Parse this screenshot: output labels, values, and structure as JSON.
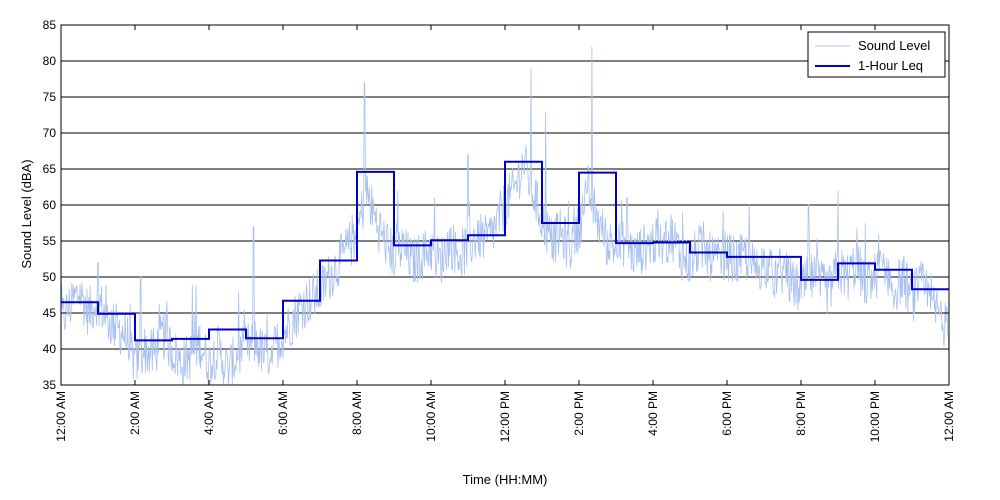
{
  "chart_data": {
    "type": "line",
    "title": "",
    "xlabel": "Time (HH:MM)",
    "ylabel": "Sound Level (dBA)",
    "xlim": [
      0,
      24
    ],
    "ylim": [
      35,
      85
    ],
    "y_ticks": [
      35,
      40,
      45,
      50,
      55,
      60,
      65,
      70,
      75,
      80,
      85
    ],
    "x_ticks": [
      0,
      2,
      4,
      6,
      8,
      10,
      12,
      14,
      16,
      18,
      20,
      22,
      24
    ],
    "x_tick_labels": [
      "12:00 AM",
      "2:00 AM",
      "4:00 AM",
      "6:00 AM",
      "8:00 AM",
      "10:00 AM",
      "12:00 PM",
      "2:00 PM",
      "4:00 PM",
      "6:00 PM",
      "8:00 PM",
      "10:00 PM",
      "12:00 AM"
    ],
    "grid": {
      "horizontal": true,
      "vertical": false
    },
    "legend_position": "top-right",
    "colors": {
      "sound_level": "#a8c0f0",
      "leq": "#0000cc"
    },
    "series": [
      {
        "name": "Sound Level",
        "style": "thin-line",
        "x": [
          0.0,
          0.25,
          0.5,
          0.75,
          1.0,
          1.25,
          1.5,
          1.75,
          2.0,
          2.25,
          2.5,
          2.75,
          3.0,
          3.25,
          3.5,
          3.75,
          4.0,
          4.25,
          4.5,
          4.75,
          5.0,
          5.25,
          5.5,
          5.75,
          6.0,
          6.25,
          6.5,
          6.75,
          7.0,
          7.25,
          7.5,
          7.75,
          8.0,
          8.25,
          8.5,
          8.75,
          9.0,
          9.25,
          9.5,
          9.75,
          10.0,
          10.25,
          10.5,
          10.75,
          11.0,
          11.25,
          11.5,
          11.75,
          12.0,
          12.25,
          12.5,
          12.75,
          13.0,
          13.25,
          13.5,
          13.75,
          14.0,
          14.25,
          14.5,
          14.75,
          15.0,
          15.25,
          15.5,
          15.75,
          16.0,
          16.25,
          16.5,
          16.75,
          17.0,
          17.25,
          17.5,
          17.75,
          18.0,
          18.25,
          18.5,
          18.75,
          19.0,
          19.25,
          19.5,
          19.75,
          20.0,
          20.25,
          20.5,
          20.75,
          21.0,
          21.25,
          21.5,
          21.75,
          22.0,
          22.25,
          22.5,
          22.75,
          23.0,
          23.25,
          23.5,
          23.75,
          24.0
        ],
        "values": [
          44,
          46,
          48,
          45,
          47,
          44,
          43,
          42,
          38,
          40,
          39,
          42,
          40,
          38,
          39,
          41,
          38,
          40,
          37,
          39,
          40,
          41,
          39,
          40,
          42,
          44,
          46,
          47,
          48,
          50,
          52,
          54,
          56,
          62,
          58,
          55,
          53,
          54,
          52,
          53,
          54,
          52,
          55,
          53,
          54,
          56,
          55,
          57,
          60,
          62,
          66,
          62,
          58,
          55,
          56,
          54,
          57,
          62,
          58,
          55,
          54,
          55,
          53,
          54,
          55,
          54,
          56,
          53,
          52,
          54,
          53,
          52,
          53,
          52,
          53,
          51,
          52,
          50,
          51,
          49,
          48,
          50,
          49,
          48,
          51,
          50,
          52,
          49,
          50,
          52,
          48,
          50,
          47,
          49,
          46,
          45,
          42
        ]
      },
      {
        "name": "1-Hour Leq",
        "style": "step",
        "x": [
          0,
          1,
          2,
          3,
          4,
          5,
          6,
          7,
          8,
          9,
          10,
          11,
          12,
          13,
          14,
          15,
          16,
          17,
          18,
          19,
          20,
          21,
          22,
          23,
          24
        ],
        "values": [
          46.5,
          44.9,
          41.2,
          41.4,
          42.7,
          41.5,
          46.7,
          52.3,
          64.6,
          54.4,
          55.1,
          55.8,
          66.0,
          57.5,
          64.5,
          54.7,
          54.8,
          53.4,
          52.8,
          52.8,
          49.6,
          51.9,
          51.0,
          48.3,
          48.3
        ]
      }
    ],
    "peaks": {
      "x": [
        1.0,
        2.15,
        3.55,
        4.8,
        5.2,
        8.2,
        9.1,
        10.1,
        11.0,
        12.7,
        13.1,
        14.35,
        15.3,
        16.8,
        18.6,
        20.2,
        21.0,
        22.1
      ],
      "values": [
        52,
        50,
        49,
        48,
        57,
        77,
        62,
        61,
        67,
        79,
        73,
        82,
        61,
        59,
        60,
        60,
        62,
        56
      ]
    }
  }
}
